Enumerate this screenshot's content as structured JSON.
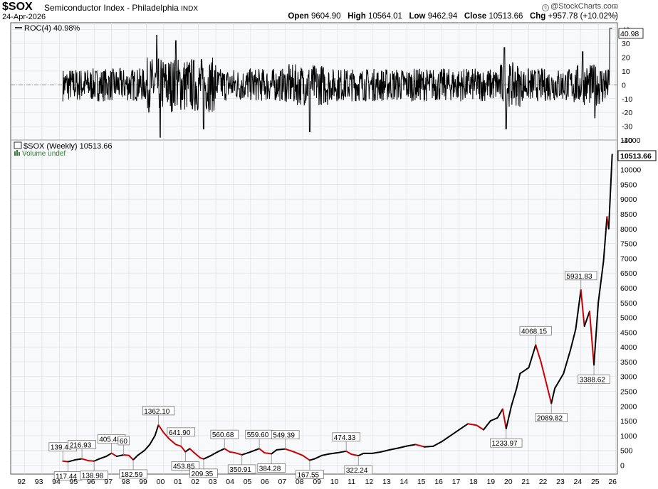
{
  "header": {
    "symbol": "$SOX",
    "description": "Semiconductor Index - Philadelphia",
    "exchange": "INDX",
    "date": "24-Apr-2026",
    "credit": "@StockCharts.com",
    "open_label": "Open",
    "open_value": "9604.90",
    "high_label": "High",
    "high_value": "10564.01",
    "low_label": "Low",
    "low_value": "9462.94",
    "close_label": "Close",
    "close_value": "10513.66",
    "chg_label": "Chg",
    "chg_value": "+957.78 (+10.02%)"
  },
  "colors": {
    "panel_bg": "#f8f9fb",
    "price_line": "#000000",
    "price_down": "#cc0000",
    "grid": "#d9dde3"
  },
  "chart_data": [
    {
      "type": "line",
      "indicator": "ROC(4)",
      "legend": "ROC(4) 40.98%",
      "last_value_label": "40.98",
      "ylim": [
        -40,
        45
      ],
      "y_ticks": [
        40,
        30,
        20,
        10,
        0,
        -10,
        -20,
        -30,
        -40
      ],
      "y_tick_labels": [
        "40",
        "30",
        "20",
        "10",
        "0",
        "-10",
        "-20",
        "-30",
        "-40"
      ],
      "zero_line": "dash-dot",
      "x_start": 1994.7,
      "x_end": 2026.3
    },
    {
      "type": "line",
      "title": "$SOX (Weekly) 10513.66",
      "volume_label": "Volume undef",
      "last_value_label": "10513.66",
      "ylim": [
        -300,
        11000
      ],
      "y_ticks": [
        0,
        500,
        1000,
        1500,
        2000,
        2500,
        3000,
        3500,
        4000,
        4500,
        5000,
        5500,
        6000,
        6500,
        7000,
        7500,
        8000,
        8500,
        9000,
        9500,
        10000,
        11000
      ],
      "y_tick_labels": [
        "0",
        "500",
        "1000",
        "1500",
        "2000",
        "2500",
        "3000",
        "3500",
        "4000",
        "4500",
        "5000",
        "5500",
        "6000",
        "6500",
        "7000",
        "7500",
        "8000",
        "8500",
        "9000",
        "9500",
        "10000",
        "11000"
      ],
      "x_ticks": [
        1992,
        1993,
        1994,
        1995,
        1996,
        1997,
        1998,
        1999,
        2000,
        2001,
        2002,
        2003,
        2004,
        2005,
        2006,
        2007,
        2008,
        2009,
        2010,
        2011,
        2012,
        2013,
        2014,
        2015,
        2016,
        2017,
        2018,
        2019,
        2020,
        2021,
        2022,
        2023,
        2024,
        2025,
        2026
      ],
      "x_tick_labels": [
        "92",
        "93",
        "94",
        "95",
        "96",
        "97",
        "98",
        "99",
        "00",
        "01",
        "02",
        "03",
        "04",
        "05",
        "06",
        "07",
        "08",
        "09",
        "10",
        "11",
        "12",
        "13",
        "14",
        "15",
        "16",
        "17",
        "18",
        "19",
        "20",
        "21",
        "22",
        "23",
        "24",
        "25",
        "26"
      ],
      "x": [
        1994.7,
        1995.0,
        1995.4,
        1995.8,
        1996.2,
        1996.5,
        1996.8,
        1997.2,
        1997.5,
        1997.8,
        1998.2,
        1998.5,
        1998.75,
        1999.0,
        1999.4,
        1999.7,
        2000.0,
        2000.2,
        2000.5,
        2000.8,
        2001.2,
        2001.5,
        2001.75,
        2002.0,
        2002.3,
        2002.6,
        2002.8,
        2003.2,
        2003.6,
        2004.0,
        2004.3,
        2004.6,
        2005.0,
        2005.5,
        2006.0,
        2006.3,
        2006.7,
        2007.0,
        2007.5,
        2008.0,
        2008.5,
        2008.9,
        2009.2,
        2009.6,
        2010.0,
        2010.5,
        2011.0,
        2011.3,
        2011.7,
        2012.0,
        2012.5,
        2013.0,
        2013.5,
        2014.0,
        2014.5,
        2015.0,
        2015.5,
        2016.0,
        2016.5,
        2017.0,
        2017.5,
        2018.0,
        2018.5,
        2018.9,
        2019.3,
        2019.7,
        2020.0,
        2020.2,
        2020.5,
        2020.8,
        2021.0,
        2021.5,
        2021.9,
        2022.2,
        2022.5,
        2022.8,
        2023.0,
        2023.5,
        2023.9,
        2024.2,
        2024.5,
        2024.7,
        2025.0,
        2025.25,
        2025.5,
        2025.8,
        2026.0,
        2026.1,
        2026.3
      ],
      "y": [
        139,
        117,
        180,
        216,
        150,
        139,
        216,
        300,
        405,
        300,
        350,
        330,
        183,
        330,
        500,
        700,
        1000,
        1362,
        1100,
        900,
        700,
        642,
        454,
        560,
        400,
        250,
        209,
        320,
        450,
        561,
        450,
        420,
        351,
        450,
        560,
        420,
        384,
        520,
        549,
        450,
        330,
        168,
        220,
        330,
        380,
        420,
        474,
        370,
        322,
        400,
        400,
        450,
        520,
        580,
        650,
        700,
        620,
        640,
        800,
        1000,
        1200,
        1400,
        1350,
        1200,
        1500,
        1600,
        1900,
        1234,
        2000,
        2600,
        3100,
        3300,
        4068,
        3500,
        2800,
        2090,
        2600,
        3100,
        3900,
        4600,
        5932,
        4700,
        5200,
        3389,
        5500,
        6900,
        8400,
        8000,
        10514
      ],
      "annotations": [
        {
          "label": "139.49",
          "x": 1994.7,
          "y": 139.49,
          "pos": "above"
        },
        {
          "label": "117.44",
          "x": 1995.0,
          "y": 117.44,
          "pos": "below"
        },
        {
          "label": "216.93",
          "x": 1995.8,
          "y": 216.93,
          "pos": "above"
        },
        {
          "label": "138.98",
          "x": 1996.5,
          "y": 138.98,
          "pos": "below"
        },
        {
          "label": "405.48",
          "x": 1997.5,
          "y": 405.48,
          "pos": "above"
        },
        {
          "label": "60",
          "x": 1998.2,
          "y": 350,
          "pos": "above"
        },
        {
          "label": "182.59",
          "x": 1998.75,
          "y": 182.59,
          "pos": "below"
        },
        {
          "label": "1362.10",
          "x": 2000.2,
          "y": 1362.1,
          "pos": "above"
        },
        {
          "label": "641.90",
          "x": 2001.5,
          "y": 641.9,
          "pos": "above"
        },
        {
          "label": "453.85",
          "x": 2001.75,
          "y": 453.85,
          "pos": "below"
        },
        {
          "label": "209.35",
          "x": 2002.8,
          "y": 209.35,
          "pos": "below"
        },
        {
          "label": "560.68",
          "x": 2004.0,
          "y": 560.68,
          "pos": "above"
        },
        {
          "label": "350.91",
          "x": 2005.0,
          "y": 350.91,
          "pos": "below"
        },
        {
          "label": "559.60",
          "x": 2006.0,
          "y": 559.6,
          "pos": "above"
        },
        {
          "label": "384.28",
          "x": 2006.7,
          "y": 384.28,
          "pos": "below"
        },
        {
          "label": "549.39",
          "x": 2007.5,
          "y": 549.39,
          "pos": "above"
        },
        {
          "label": "167.55",
          "x": 2008.9,
          "y": 167.55,
          "pos": "below"
        },
        {
          "label": "474.33",
          "x": 2011.0,
          "y": 474.33,
          "pos": "above"
        },
        {
          "label": "322.24",
          "x": 2011.7,
          "y": 322.24,
          "pos": "below"
        },
        {
          "label": "1233.97",
          "x": 2020.2,
          "y": 1233.97,
          "pos": "below"
        },
        {
          "label": "4068.15",
          "x": 2021.9,
          "y": 4068.15,
          "pos": "above"
        },
        {
          "label": "2089.82",
          "x": 2022.8,
          "y": 2089.82,
          "pos": "below"
        },
        {
          "label": "5931.83",
          "x": 2024.5,
          "y": 5931.83,
          "pos": "above"
        },
        {
          "label": "3388.62",
          "x": 2025.25,
          "y": 3388.62,
          "pos": "below"
        }
      ]
    }
  ]
}
